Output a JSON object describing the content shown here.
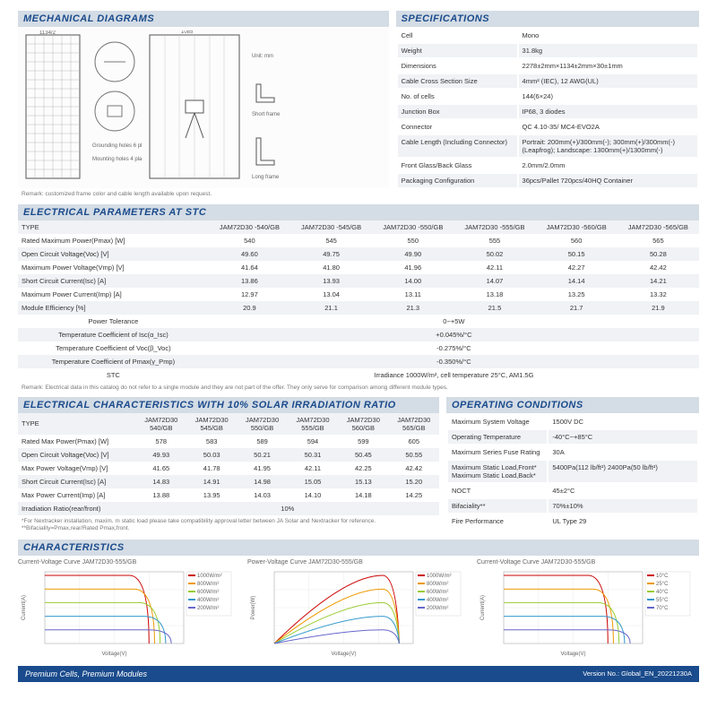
{
  "sections": {
    "mech": "MECHANICAL DIAGRAMS",
    "spec": "SPECIFICATIONS",
    "stc": "ELECTRICAL PARAMETERS AT STC",
    "irr": "ELECTRICAL CHARACTERISTICS WITH 10% SOLAR IRRADIATION RATIO",
    "oper": "OPERATING CONDITIONS",
    "char": "CHARACTERISTICS"
  },
  "specs": [
    [
      "Cell",
      "Mono"
    ],
    [
      "Weight",
      "31.8kg"
    ],
    [
      "Dimensions",
      "2278±2mm×1134±2mm×30±1mm"
    ],
    [
      "Cable Cross Section Size",
      "4mm² (IEC), 12 AWG(UL)"
    ],
    [
      "No. of cells",
      "144(6×24)"
    ],
    [
      "Junction Box",
      "IP68, 3 diodes"
    ],
    [
      "Connector",
      "QC 4.10-35/   MC4-EVO2A"
    ],
    [
      "Cable Length (Including Connector)",
      "Portrait: 200mm(+)/300mm(-); 300mm(+)/300mm(-)(Leapfrog); Landscape: 1300mm(+)/1300mm(-)"
    ],
    [
      "Front Glass/Back Glass",
      "2.0mm/2.0mm"
    ],
    [
      "Packaging Configuration",
      "36pcs/Pallet  720pcs/40HQ Container"
    ]
  ],
  "diagram_labels": {
    "w": "1134/2",
    "h": "2278/2",
    "unit": "Unit: mm",
    "short": "Short frame",
    "long": "Long frame",
    "ground": "Grounding holes 6 places",
    "mount": "Mounting holes 4 places"
  },
  "diagram_note": "Remark: customized frame color and cable length available upon request.",
  "stc": {
    "type_label": "TYPE",
    "models": [
      "JAM72D30 -540/GB",
      "JAM72D30 -545/GB",
      "JAM72D30 -550/GB",
      "JAM72D30 -555/GB",
      "JAM72D30 -560/GB",
      "JAM72D30 -565/GB"
    ],
    "rows": [
      [
        "Rated Maximum Power(Pmax) [W]",
        "540",
        "545",
        "550",
        "555",
        "560",
        "565"
      ],
      [
        "Open Circuit Voltage(Voc) [V]",
        "49.60",
        "49.75",
        "49.90",
        "50.02",
        "50.15",
        "50.28"
      ],
      [
        "Maximum Power Voltage(Vmp) [V]",
        "41.64",
        "41.80",
        "41.96",
        "42.11",
        "42.27",
        "42.42"
      ],
      [
        "Short Circuit Current(Isc) [A]",
        "13.86",
        "13.93",
        "14.00",
        "14.07",
        "14.14",
        "14.21"
      ],
      [
        "Maximum Power Current(Imp) [A]",
        "12.97",
        "13.04",
        "13.11",
        "13.18",
        "13.25",
        "13.32"
      ],
      [
        "Module Efficiency [%]",
        "20.9",
        "21.1",
        "21.3",
        "21.5",
        "21.7",
        "21.9"
      ]
    ],
    "full": [
      [
        "Power Tolerance",
        "0~+5W"
      ],
      [
        "Temperature Coefficient of Isc(α_Isc)",
        "+0.045%/°C"
      ],
      [
        "Temperature Coefficient of Voc(β_Voc)",
        "-0.275%/°C"
      ],
      [
        "Temperature Coefficient of Pmax(γ_Pmp)",
        "-0.350%/°C"
      ],
      [
        "STC",
        "Irradiance 1000W/m², cell temperature 25°C, AM1.5G"
      ]
    ],
    "note": "Remark: Electrical data in this catalog do not refer to a single module and they are not part of the offer. They only serve for comparison among different module types."
  },
  "irr": {
    "models": [
      "JAM72D30 540/GB",
      "JAM72D30 545/GB",
      "JAM72D30 550/GB",
      "JAM72D30 555/GB",
      "JAM72D30 560/GB",
      "JAM72D30 565/GB"
    ],
    "rows": [
      [
        "Rated Max Power(Pmax) [W]",
        "578",
        "583",
        "589",
        "594",
        "599",
        "605"
      ],
      [
        "Open Circuit Voltage(Voc) [V]",
        "49.93",
        "50.03",
        "50.21",
        "50.31",
        "50.45",
        "50.55"
      ],
      [
        "Max Power Voltage(Vmp) [V]",
        "41.65",
        "41.78",
        "41.95",
        "42.11",
        "42.25",
        "42.42"
      ],
      [
        "Short Circuit Current(Isc) [A]",
        "14.83",
        "14.91",
        "14.98",
        "15.05",
        "15.13",
        "15.20"
      ],
      [
        "Max Power Current(Imp) [A]",
        "13.88",
        "13.95",
        "14.03",
        "14.10",
        "14.18",
        "14.25"
      ]
    ],
    "ratio_label": "Irradiation Ratio(rear/front)",
    "ratio_val": "10%",
    "note": "*For Nextracker installation, maxim. m static load please take compatibility approval letter between JA Solar and Nextracker for reference.  **Bifaciality=Pmax,rear/Rated Pmax,front."
  },
  "oper": [
    [
      "Maximum System Voltage",
      "1500V DC"
    ],
    [
      "Operating Temperature",
      "-40°C~+85°C"
    ],
    [
      "Maximum Series Fuse Rating",
      "30A"
    ],
    [
      "Maximum Static Load,Front* Maximum Static Load,Back*",
      "5400Pa(112 lb/ft²) 2400Pa(50 lb/ft²)"
    ],
    [
      "NOCT",
      "45±2°C"
    ],
    [
      "Bifaciality**",
      "70%±10%"
    ],
    [
      "Fire Performance",
      "UL Type 29"
    ]
  ],
  "charts": [
    {
      "title": "Current-Voltage Curve  JAM72D30-555/GB",
      "type": "iv-irr",
      "xlabel": "Voltage(V)",
      "ylabel": "Current(A)",
      "legend": [
        "1000W/m²",
        "800W/m²",
        "600W/m²",
        "400W/m²",
        "200W/m²"
      ],
      "colors": [
        "#c00",
        "#e90",
        "#9c3",
        "#39c",
        "#66c"
      ]
    },
    {
      "title": "Power-Voltage Curve  JAM72D30-555/GB",
      "type": "pv",
      "xlabel": "Voltage(V)",
      "ylabel": "Power(W)",
      "legend": [
        "1000W/m²",
        "800W/m²",
        "600W/m²",
        "400W/m²",
        "200W/m²"
      ],
      "colors": [
        "#c00",
        "#e90",
        "#9c3",
        "#39c",
        "#66c"
      ]
    },
    {
      "title": "Current-Voltage Curve  JAM72D30-555/GB",
      "type": "iv-temp",
      "xlabel": "Voltage(V)",
      "ylabel": "Current(A)",
      "legend": [
        "10°C",
        "25°C",
        "40°C",
        "55°C",
        "70°C"
      ],
      "colors": [
        "#c00",
        "#e90",
        "#9c3",
        "#39c",
        "#66c"
      ]
    }
  ],
  "footer": {
    "left": "Premium Cells, Premium Modules",
    "right": "Version No.: Global_EN_20221230A"
  }
}
